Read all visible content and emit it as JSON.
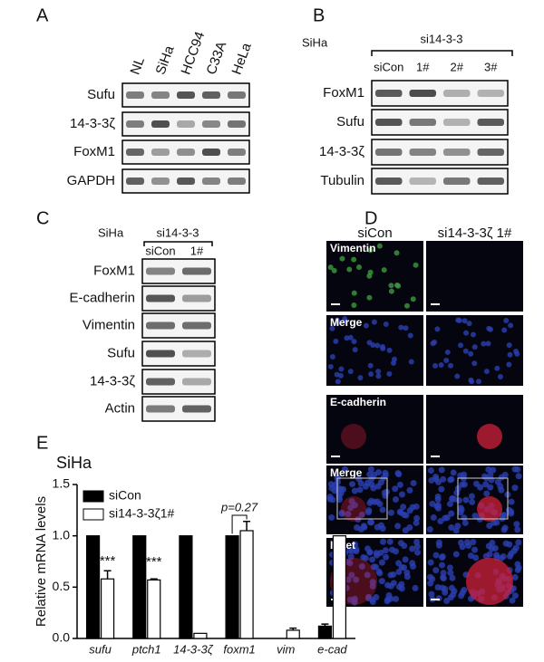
{
  "panel_a": {
    "label": "A",
    "lanes": [
      "NL",
      "SiHa",
      "HCC94",
      "C33A",
      "HeLa"
    ],
    "rows": [
      "Sufu",
      "14-3-3ζ",
      "FoxM1",
      "GAPDH"
    ]
  },
  "panel_b": {
    "label": "B",
    "cell_line": "SiHa",
    "treatment": "si14-3-3",
    "lanes": [
      "siCon",
      "1#",
      "2#",
      "3#"
    ],
    "rows": [
      "FoxM1",
      "Sufu",
      "14-3-3ζ",
      "Tubulin"
    ]
  },
  "panel_c": {
    "label": "C",
    "cell_line": "SiHa",
    "treatment": "si14-3-3",
    "lanes": [
      "siCon",
      "1#"
    ],
    "rows": [
      "FoxM1",
      "E-cadherin",
      "Vimentin",
      "Sufu",
      "14-3-3ζ",
      "Actin"
    ]
  },
  "panel_d": {
    "label": "D",
    "columns": [
      "siCon",
      "si14-3-3ζ 1#"
    ],
    "rows": [
      "Vimentin",
      "Merge",
      "E-cadherin",
      "Merge",
      "Inset"
    ]
  },
  "panel_e": {
    "label": "E"
  },
  "chart_data": {
    "type": "bar",
    "title": "SiHa",
    "y_label": "Relative mRNA levels",
    "categories": [
      "sufu",
      "ptch1",
      "14-3-3ζ",
      "foxm1",
      "vim",
      "e-cad"
    ],
    "series": [
      {
        "name": "siCon",
        "color": "#000000",
        "values": [
          1,
          1,
          1,
          1,
          null,
          0.12
        ],
        "errors": [
          null,
          null,
          null,
          null,
          null,
          0.02
        ]
      },
      {
        "name": "si14-3-3ζ1#",
        "color": "#ffffff",
        "values": [
          0.58,
          0.57,
          0.05,
          1.05,
          0.08,
          1
        ],
        "errors": [
          0.08,
          0.01,
          null,
          0.09,
          0.02,
          null
        ]
      }
    ],
    "annotations": [
      {
        "text": "***",
        "x": "sufu"
      },
      {
        "text": "***",
        "x": "ptch1"
      },
      {
        "text": "p=0.27",
        "x": "foxm1"
      }
    ],
    "ylim": [
      0,
      1.5
    ],
    "yticks": [
      {
        "value": 0,
        "label": "0.0"
      },
      {
        "value": 0.5,
        "label": "0.5"
      },
      {
        "value": 1,
        "label": "1.0"
      },
      {
        "value": 1.5,
        "label": "1.5"
      }
    ]
  }
}
